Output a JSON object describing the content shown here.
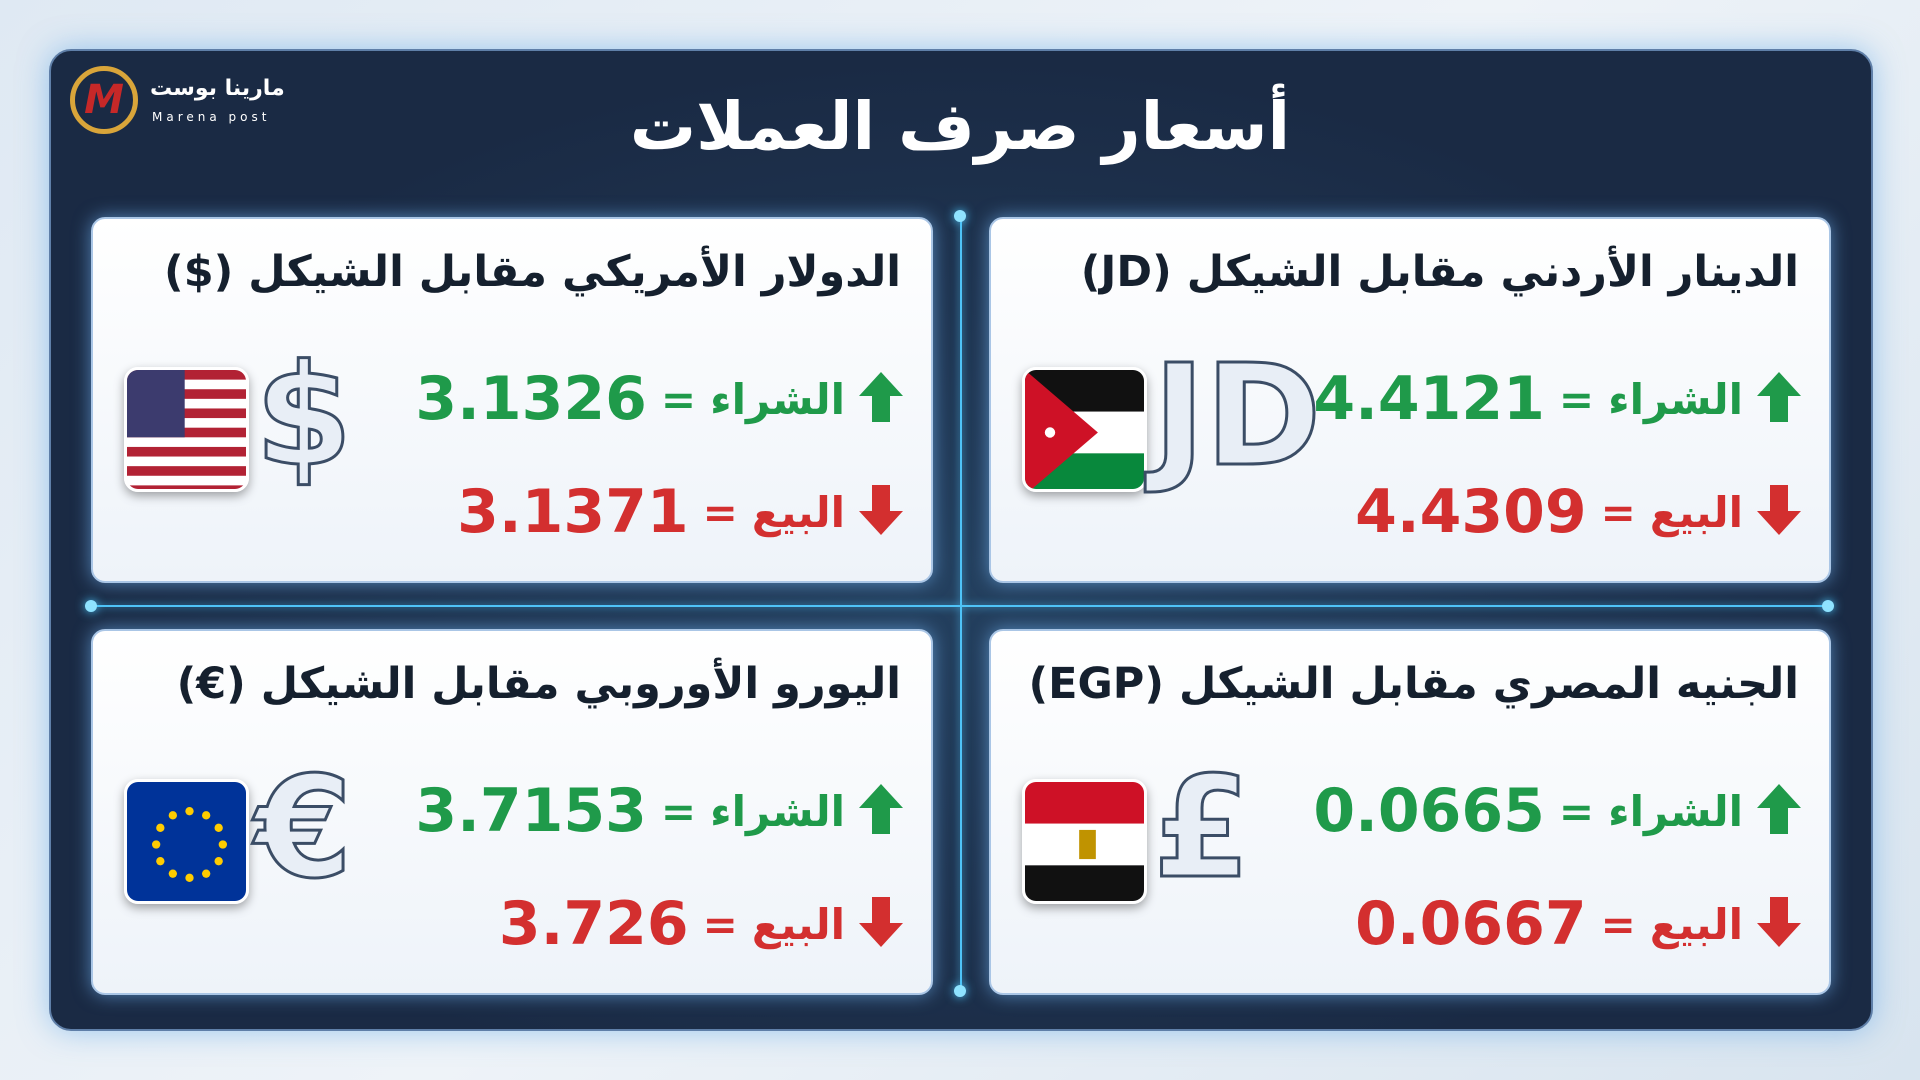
{
  "header": {
    "logo_name": "مارينا بوست",
    "logo_sub": "Marena post",
    "title": "أسعار صرف العملات"
  },
  "equals": "=",
  "cards": [
    {
      "title": "الدينار الأردني مقابل الشيكل (JD)",
      "symbol": "JD",
      "buy_label": "الشراء",
      "buy_value": "4.4121",
      "sell_label": "البيع",
      "sell_value": "4.4309"
    },
    {
      "title": "الدولار الأمريكي مقابل الشيكل ($)",
      "symbol": "$",
      "buy_label": "الشراء",
      "buy_value": "3.1326",
      "sell_label": "البيع",
      "sell_value": "3.1371"
    },
    {
      "title": "الجنيه المصري مقابل الشيكل (EGP)",
      "symbol": "£",
      "buy_label": "الشراء",
      "buy_value": "0.0665",
      "sell_label": "البيع",
      "sell_value": "0.0667"
    },
    {
      "title": "اليورو الأوروبي مقابل الشيكل (€)",
      "symbol": "€",
      "buy_label": "الشراء",
      "buy_value": "3.7153",
      "sell_label": "البيع",
      "sell_value": "3.726"
    }
  ]
}
